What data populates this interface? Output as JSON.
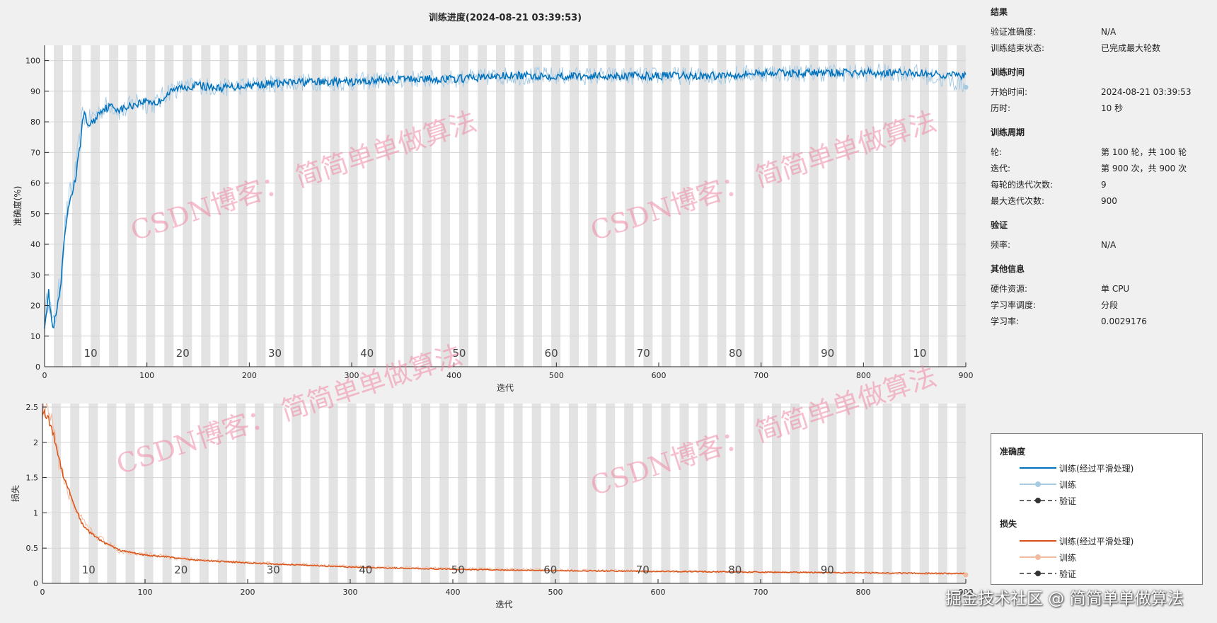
{
  "title": "训练进度(2024-08-21 03:39:53)",
  "colors": {
    "acc_smooth": "#0072bd",
    "acc_raw": "#a8cbe4",
    "loss_smooth": "#d95319",
    "loss_raw": "#f1bb9f",
    "val": "#333333",
    "epoch_band": "#e3e3e3",
    "grid": "#d4d4d4",
    "watermark": "#f08aa6"
  },
  "chart_data": [
    {
      "type": "line",
      "title": "训练进度(2024-08-21 03:39:53)",
      "xlabel": "迭代",
      "ylabel": "准确度(%)",
      "xlim": [
        0,
        900
      ],
      "ylim": [
        0,
        105
      ],
      "xticks": [
        0,
        100,
        200,
        300,
        400,
        500,
        600,
        700,
        800,
        900
      ],
      "yticks": [
        0,
        10,
        20,
        30,
        40,
        50,
        60,
        70,
        80,
        90,
        100
      ],
      "epoch_bands": 100,
      "iterations_per_epoch": 9,
      "epoch_labels": [
        "10",
        "20",
        "30",
        "40",
        "50",
        "60",
        "70",
        "80",
        "90",
        "10"
      ],
      "series": [
        {
          "name": "训练(经过平滑处理)",
          "x": [
            0,
            4,
            8,
            12,
            16,
            20,
            25,
            30,
            34,
            38,
            42,
            48,
            55,
            65,
            75,
            90,
            100,
            110,
            120,
            130,
            150,
            170,
            200,
            250,
            300,
            350,
            400,
            450,
            500,
            550,
            600,
            650,
            700,
            750,
            800,
            850,
            900
          ],
          "values": [
            14,
            24,
            12,
            18,
            27,
            44,
            55,
            61,
            70,
            83,
            79,
            80,
            84,
            85,
            84,
            86,
            87,
            86,
            89,
            91,
            92,
            91,
            92,
            93,
            93,
            94,
            94,
            95,
            95,
            95,
            95,
            95,
            96,
            96,
            96,
            96,
            95
          ]
        },
        {
          "name": "训练",
          "x": [
            0,
            4,
            8,
            12,
            16,
            20,
            25,
            30,
            34,
            38,
            42,
            48,
            55,
            65,
            75,
            90,
            100,
            110,
            120,
            130,
            150,
            170,
            200,
            250,
            300,
            350,
            400,
            450,
            500,
            550,
            600,
            650,
            700,
            750,
            800,
            850,
            900
          ],
          "values": [
            14,
            25,
            12,
            20,
            28,
            46,
            56,
            63,
            72,
            84,
            80,
            82,
            84,
            86,
            83,
            87,
            86,
            86,
            90,
            91,
            92,
            91,
            92,
            93,
            93,
            94,
            94,
            95,
            95,
            95,
            95,
            95,
            96,
            96,
            96,
            96,
            92
          ]
        }
      ],
      "validation": "N/A"
    },
    {
      "type": "line",
      "xlabel": "迭代",
      "ylabel": "损失",
      "xlim": [
        0,
        900
      ],
      "ylim": [
        0,
        2.55
      ],
      "xticks": [
        0,
        100,
        200,
        300,
        400,
        500,
        600,
        700,
        800,
        900
      ],
      "yticks": [
        0,
        0.5,
        1,
        1.5,
        2,
        2.5
      ],
      "ytick_labels": [
        "0",
        "0.5",
        "1",
        "1.5",
        "2",
        "2.5"
      ],
      "epoch_bands": 100,
      "iterations_per_epoch": 9,
      "epoch_labels": [
        "10",
        "20",
        "30",
        "40",
        "50",
        "60",
        "70",
        "80",
        "90"
      ],
      "series": [
        {
          "name": "训练(经过平滑处理)",
          "x": [
            0,
            5,
            10,
            15,
            20,
            30,
            40,
            50,
            60,
            75,
            100,
            125,
            150,
            200,
            250,
            300,
            400,
            500,
            600,
            700,
            800,
            900
          ],
          "values": [
            2.45,
            2.35,
            2.15,
            1.85,
            1.55,
            1.15,
            0.8,
            0.68,
            0.58,
            0.47,
            0.4,
            0.37,
            0.33,
            0.29,
            0.26,
            0.23,
            0.2,
            0.18,
            0.17,
            0.16,
            0.15,
            0.14
          ]
        },
        {
          "name": "训练",
          "x": [
            0,
            5,
            10,
            15,
            20,
            30,
            40,
            50,
            60,
            75,
            100,
            125,
            150,
            200,
            250,
            300,
            400,
            500,
            600,
            700,
            800,
            900
          ],
          "values": [
            2.5,
            2.4,
            2.2,
            1.8,
            1.5,
            1.1,
            0.85,
            0.7,
            0.6,
            0.45,
            0.42,
            0.37,
            0.33,
            0.3,
            0.27,
            0.24,
            0.21,
            0.19,
            0.17,
            0.16,
            0.15,
            0.13
          ]
        }
      ],
      "validation": "N/A"
    }
  ],
  "info": {
    "results": {
      "title": "结果",
      "rows": [
        {
          "k": "验证准确度:",
          "v": "N/A"
        },
        {
          "k": "训练结束状态:",
          "v": "已完成最大轮数"
        }
      ]
    },
    "time": {
      "title": "训练时间",
      "rows": [
        {
          "k": "开始时间:",
          "v": "2024-08-21 03:39:53"
        },
        {
          "k": "历时:",
          "v": "10 秒"
        }
      ]
    },
    "cycle": {
      "title": "训练周期",
      "rows": [
        {
          "k": "轮:",
          "v": "第 100 轮，共 100 轮"
        },
        {
          "k": "迭代:",
          "v": "第 900 次，共 900 次"
        },
        {
          "k": "每轮的迭代次数:",
          "v": "9"
        },
        {
          "k": "最大迭代次数:",
          "v": "900"
        }
      ]
    },
    "validation": {
      "title": "验证",
      "rows": [
        {
          "k": "频率:",
          "v": "N/A"
        }
      ]
    },
    "other": {
      "title": "其他信息",
      "rows": [
        {
          "k": "硬件资源:",
          "v": "单 CPU"
        },
        {
          "k": "学习率调度:",
          "v": "分段"
        },
        {
          "k": "学习率:",
          "v": "0.0029176"
        }
      ]
    }
  },
  "legend": {
    "acc_title": "准确度",
    "loss_title": "损失",
    "smooth": "训练(经过平滑处理)",
    "train": "训练",
    "val": "验证"
  },
  "watermarks": [
    "CSDN博客：  简简单单做算法"
  ],
  "corner_watermark": "掘金技术社区 @ 简简单单做算法"
}
